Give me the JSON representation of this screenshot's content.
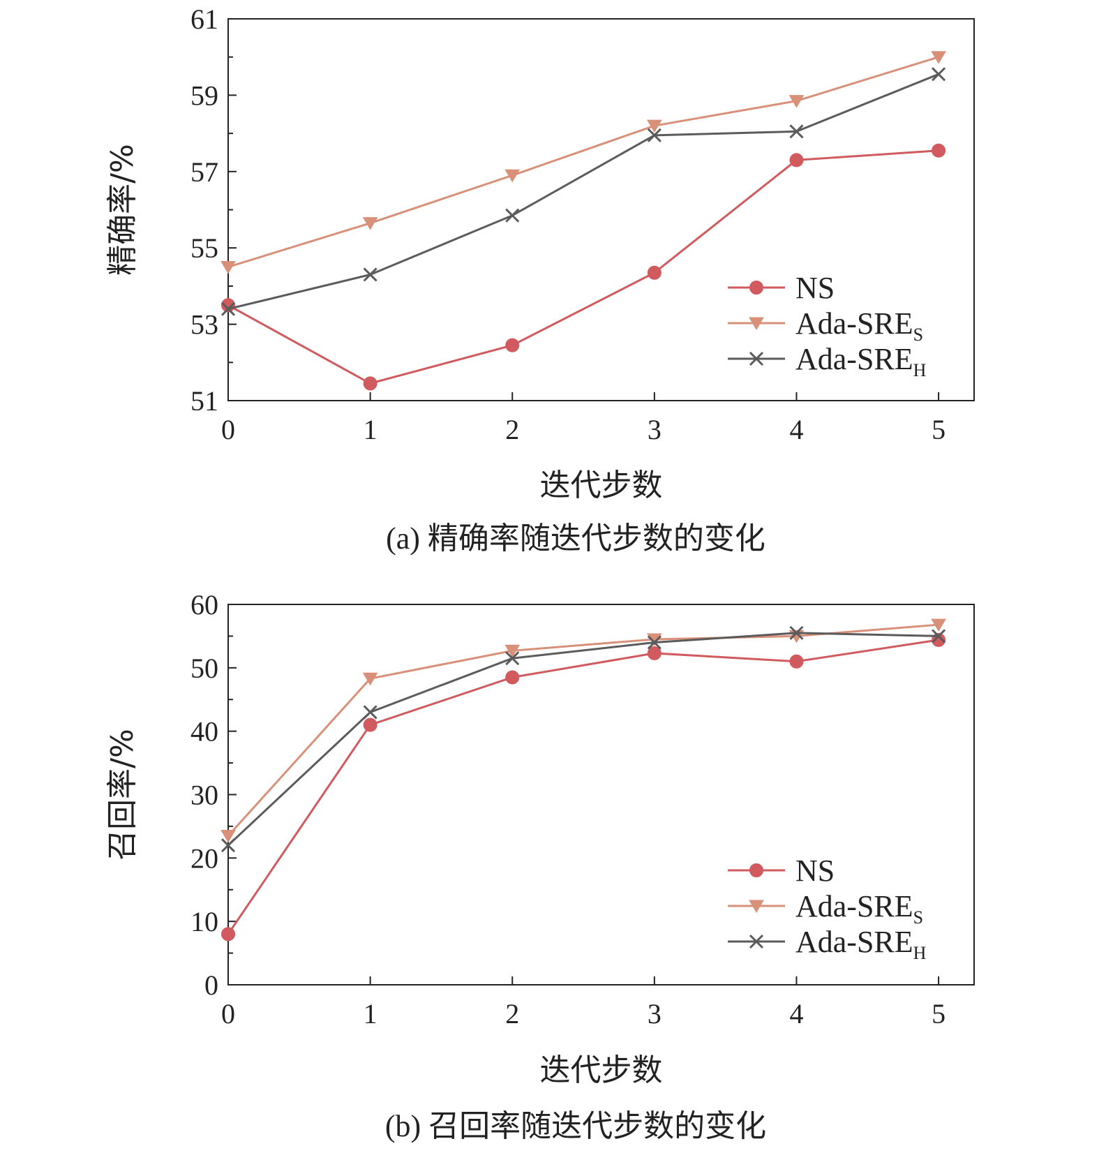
{
  "colors": {
    "ns": "#d05a5e",
    "ada_sre_s": "#d89079",
    "ada_sre_h": "#5b5b5b",
    "axis": "#222222"
  },
  "chart_data": [
    {
      "type": "line",
      "title": "",
      "caption": "(a)  精确率随迭代步数的变化",
      "xlabel": "迭代步数",
      "ylabel": "精确率/%",
      "x": [
        0,
        1,
        2,
        3,
        4,
        5
      ],
      "xticks": [
        "0",
        "1",
        "2",
        "3",
        "4",
        "5"
      ],
      "yticks": [
        "51",
        "53",
        "55",
        "57",
        "59",
        "61"
      ],
      "xlim": [
        0,
        5.25
      ],
      "ylim": [
        51,
        61
      ],
      "legend_position": "lower-right",
      "series": [
        {
          "name": "NS",
          "label_base": "NS",
          "label_sub": "",
          "color_key": "ns",
          "marker": "circle",
          "values": [
            53.5,
            51.45,
            52.45,
            54.35,
            57.3,
            57.55
          ]
        },
        {
          "name": "Ada-SRE_S",
          "label_base": "Ada-SRE",
          "label_sub": "S",
          "color_key": "ada_sre_s",
          "marker": "triangle-down",
          "values": [
            54.5,
            55.65,
            56.9,
            58.2,
            58.85,
            60.0
          ]
        },
        {
          "name": "Ada-SRE_H",
          "label_base": "Ada-SRE",
          "label_sub": "H",
          "color_key": "ada_sre_h",
          "marker": "x",
          "values": [
            53.4,
            54.3,
            55.85,
            57.95,
            58.05,
            59.55
          ]
        }
      ]
    },
    {
      "type": "line",
      "title": "",
      "caption": "(b)  召回率随迭代步数的变化",
      "xlabel": "迭代步数",
      "ylabel": "召回率/%",
      "x": [
        0,
        1,
        2,
        3,
        4,
        5
      ],
      "xticks": [
        "0",
        "1",
        "2",
        "3",
        "4",
        "5"
      ],
      "yticks": [
        "0",
        "10",
        "20",
        "30",
        "40",
        "50",
        "60"
      ],
      "xlim": [
        0,
        5.25
      ],
      "ylim": [
        0,
        60
      ],
      "legend_position": "lower-right",
      "series": [
        {
          "name": "NS",
          "label_base": "NS",
          "label_sub": "",
          "color_key": "ns",
          "marker": "circle",
          "values": [
            8.0,
            41.0,
            48.5,
            52.3,
            51.0,
            54.4
          ]
        },
        {
          "name": "Ada-SRE_S",
          "label_base": "Ada-SRE",
          "label_sub": "S",
          "color_key": "ada_sre_s",
          "marker": "triangle-down",
          "values": [
            23.5,
            48.3,
            52.7,
            54.5,
            55.0,
            56.8
          ]
        },
        {
          "name": "Ada-SRE_H",
          "label_base": "Ada-SRE",
          "label_sub": "H",
          "color_key": "ada_sre_h",
          "marker": "x",
          "values": [
            22.0,
            43.0,
            51.5,
            54.0,
            55.5,
            55.0
          ]
        }
      ]
    }
  ]
}
